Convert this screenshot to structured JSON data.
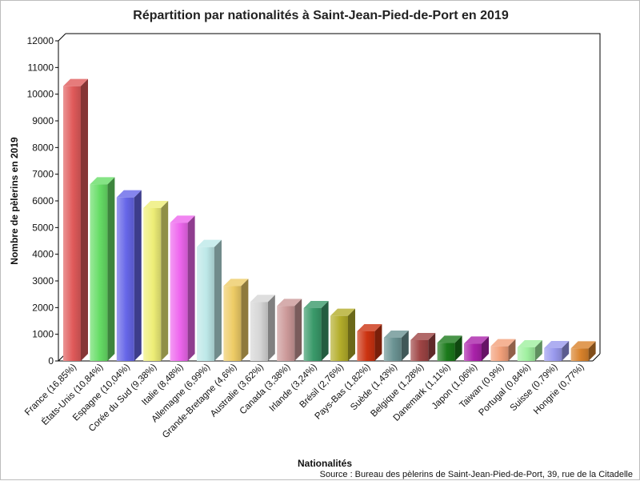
{
  "chart_data": {
    "type": "bar",
    "title": "Répartition par nationalités à Saint-Jean-Pied-de-Port en 2019",
    "xlabel": "Nationalités",
    "ylabel": "Nombre de pèlerins en 2019",
    "source": "Source : Bureau des pèlerins de Saint-Jean-Pied-de-Port, 39, rue de la Citadelle",
    "ylim": [
      0,
      12000
    ],
    "yticks": [
      "0",
      "1000",
      "2000",
      "3000",
      "4000",
      "5000",
      "6000",
      "7000",
      "8000",
      "9000",
      "10000",
      "11000",
      "12000"
    ],
    "grid": false,
    "legend": "none",
    "categories": [
      "France (16,85%)",
      "États-Unis (10,84%)",
      "Espagne (10,04%)",
      "Corée du Sud (9,38%)",
      "Italie (8,48%)",
      "Allemagne (6,99%)",
      "Grande-Bretagne (4,6%)",
      "Australie (3,62%)",
      "Canada (3,38%)",
      "Irlande (3,24%)",
      "Brésil (2,76%)",
      "Pays-Bas (1,82%)",
      "Suède (1,43%)",
      "Belgique (1,28%)",
      "Danemark (1,11%)",
      "Japon (1,06%)",
      "Taiwan (0,9%)",
      "Portugal (0,84%)",
      "Suisse (0,79%)",
      "Hongrie (0,77%)"
    ],
    "values": [
      10300,
      6620,
      6130,
      5730,
      5180,
      4270,
      2810,
      2210,
      2060,
      1980,
      1690,
      1110,
      870,
      780,
      680,
      650,
      550,
      510,
      480,
      470
    ],
    "colors": [
      "#e05a5a",
      "#66dd66",
      "#6666e8",
      "#eeee77",
      "#ee66ee",
      "#bde8e8",
      "#eecc66",
      "#d6d6d6",
      "#cc9999",
      "#3a9a6a",
      "#b3ad2a",
      "#cc3311",
      "#6b9393",
      "#9e4444",
      "#1b7a1b",
      "#aa22aa",
      "#f2a07a",
      "#9ff09f",
      "#9a9aee",
      "#d9822b"
    ]
  }
}
